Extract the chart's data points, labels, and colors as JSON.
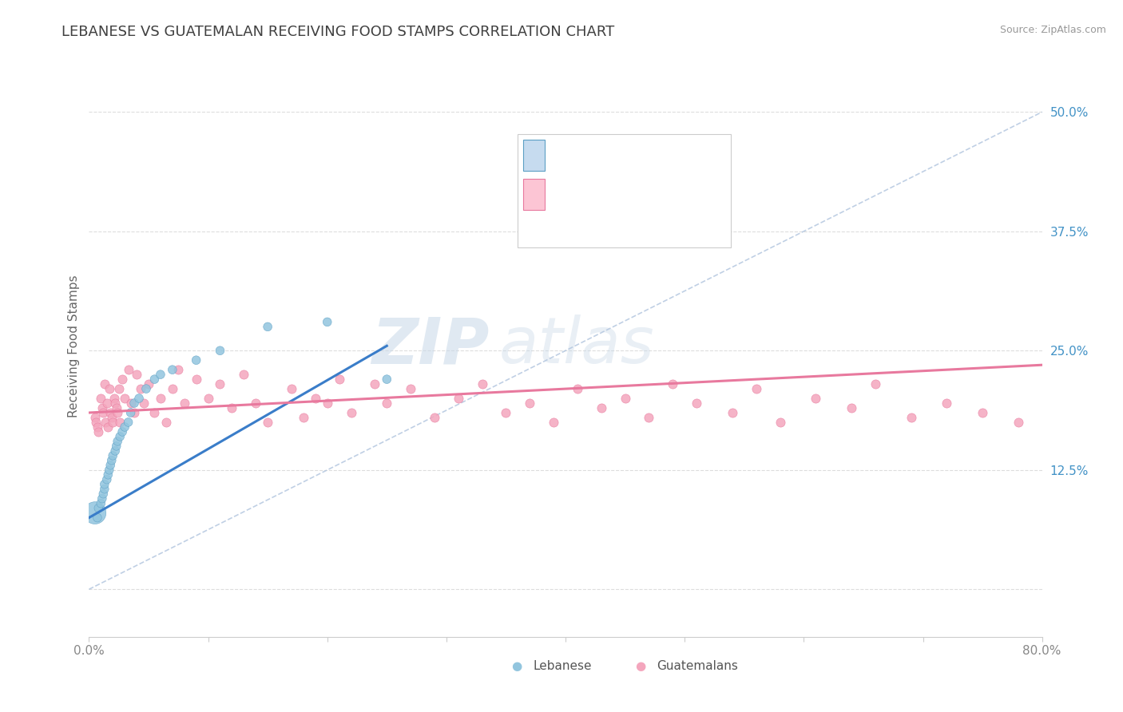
{
  "title": "LEBANESE VS GUATEMALAN RECEIVING FOOD STAMPS CORRELATION CHART",
  "source_text": "Source: ZipAtlas.com",
  "ylabel": "Receiving Food Stamps",
  "x_lim": [
    0.0,
    0.8
  ],
  "y_lim": [
    -0.05,
    0.56
  ],
  "watermark_zip": "ZIP",
  "watermark_atlas": "atlas",
  "blue_color": "#92c5de",
  "pink_color": "#f4a6bd",
  "blue_edge": "#5b9fc4",
  "pink_edge": "#e8799e",
  "trend_blue": "#3a7dc9",
  "trend_pink": "#e8799e",
  "ref_line_color": "#b0c4de",
  "title_color": "#404040",
  "legend_text_color": "#2171b5",
  "axis_label_color": "#4292c6",
  "tick_color": "#888888",
  "lebanese_x": [
    0.005,
    0.007,
    0.008,
    0.01,
    0.011,
    0.012,
    0.013,
    0.013,
    0.015,
    0.016,
    0.017,
    0.018,
    0.019,
    0.02,
    0.022,
    0.023,
    0.024,
    0.026,
    0.028,
    0.03,
    0.033,
    0.035,
    0.038,
    0.042,
    0.048,
    0.055,
    0.06,
    0.07,
    0.09,
    0.11,
    0.15,
    0.2,
    0.25
  ],
  "lebanese_y": [
    0.08,
    0.075,
    0.085,
    0.09,
    0.095,
    0.1,
    0.105,
    0.11,
    0.115,
    0.12,
    0.125,
    0.13,
    0.135,
    0.14,
    0.145,
    0.15,
    0.155,
    0.16,
    0.165,
    0.17,
    0.175,
    0.185,
    0.195,
    0.2,
    0.21,
    0.22,
    0.225,
    0.23,
    0.24,
    0.25,
    0.275,
    0.28,
    0.22
  ],
  "lebanese_sizes": [
    400,
    60,
    60,
    60,
    60,
    60,
    60,
    60,
    60,
    60,
    60,
    60,
    60,
    60,
    60,
    60,
    60,
    60,
    60,
    60,
    60,
    60,
    60,
    60,
    60,
    60,
    60,
    60,
    60,
    60,
    60,
    60,
    60
  ],
  "guatemalan_x": [
    0.005,
    0.006,
    0.007,
    0.008,
    0.01,
    0.011,
    0.012,
    0.013,
    0.014,
    0.015,
    0.016,
    0.017,
    0.018,
    0.019,
    0.02,
    0.021,
    0.022,
    0.023,
    0.024,
    0.025,
    0.026,
    0.028,
    0.03,
    0.033,
    0.035,
    0.038,
    0.04,
    0.043,
    0.046,
    0.05,
    0.055,
    0.06,
    0.065,
    0.07,
    0.075,
    0.08,
    0.09,
    0.1,
    0.11,
    0.12,
    0.13,
    0.14,
    0.15,
    0.17,
    0.18,
    0.19,
    0.2,
    0.21,
    0.22,
    0.24,
    0.25,
    0.27,
    0.29,
    0.31,
    0.33,
    0.35,
    0.37,
    0.39,
    0.41,
    0.43,
    0.45,
    0.47,
    0.49,
    0.51,
    0.54,
    0.56,
    0.58,
    0.61,
    0.64,
    0.66,
    0.69,
    0.72,
    0.75,
    0.78
  ],
  "guatemalan_y": [
    0.18,
    0.175,
    0.17,
    0.165,
    0.2,
    0.19,
    0.185,
    0.215,
    0.175,
    0.195,
    0.17,
    0.21,
    0.185,
    0.18,
    0.175,
    0.2,
    0.195,
    0.19,
    0.185,
    0.21,
    0.175,
    0.22,
    0.2,
    0.23,
    0.195,
    0.185,
    0.225,
    0.21,
    0.195,
    0.215,
    0.185,
    0.2,
    0.175,
    0.21,
    0.23,
    0.195,
    0.22,
    0.2,
    0.215,
    0.19,
    0.225,
    0.195,
    0.175,
    0.21,
    0.18,
    0.2,
    0.195,
    0.22,
    0.185,
    0.215,
    0.195,
    0.21,
    0.18,
    0.2,
    0.215,
    0.185,
    0.195,
    0.175,
    0.21,
    0.19,
    0.2,
    0.18,
    0.215,
    0.195,
    0.185,
    0.21,
    0.175,
    0.2,
    0.19,
    0.215,
    0.18,
    0.195,
    0.185,
    0.175
  ],
  "blue_trend_x": [
    0.0,
    0.25
  ],
  "blue_trend_y": [
    0.075,
    0.255
  ],
  "pink_trend_x": [
    0.0,
    0.8
  ],
  "pink_trend_y": [
    0.185,
    0.235
  ],
  "ref_line_x": [
    0.0,
    0.8
  ],
  "ref_line_y": [
    0.0,
    0.5
  ]
}
